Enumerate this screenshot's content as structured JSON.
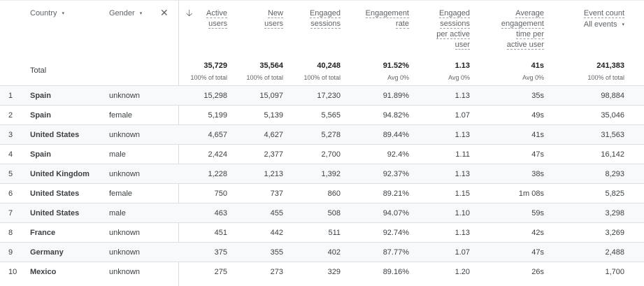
{
  "headers": {
    "dim1": "Country",
    "dim2": "Gender",
    "caret_icon": "▾",
    "close_icon": "✕",
    "sort_icon": "🡣",
    "total_label": "Total",
    "event_select": "All events",
    "metrics": [
      {
        "label": "Active\nusers",
        "total": "35,729",
        "sub": "100% of total"
      },
      {
        "label": "New\nusers",
        "total": "35,564",
        "sub": "100% of total"
      },
      {
        "label": "Engaged\nsessions",
        "total": "40,248",
        "sub": "100% of total"
      },
      {
        "label": "Engagement\nrate",
        "total": "91.52%",
        "sub": "Avg 0%"
      },
      {
        "label": "Engaged\nsessions\nper active\nuser",
        "total": "1.13",
        "sub": "Avg 0%"
      },
      {
        "label": "Average\nengagement\ntime per\nactive user",
        "total": "41s",
        "sub": "Avg 0%"
      },
      {
        "label": "Event count",
        "total": "241,383",
        "sub": "100% of total"
      }
    ]
  },
  "rows": [
    {
      "idx": "1",
      "country": "Spain",
      "gender": "unknown",
      "m": [
        "15,298",
        "15,097",
        "17,230",
        "91.89%",
        "1.13",
        "35s",
        "98,884"
      ]
    },
    {
      "idx": "2",
      "country": "Spain",
      "gender": "female",
      "m": [
        "5,199",
        "5,139",
        "5,565",
        "94.82%",
        "1.07",
        "49s",
        "35,046"
      ]
    },
    {
      "idx": "3",
      "country": "United States",
      "gender": "unknown",
      "m": [
        "4,657",
        "4,627",
        "5,278",
        "89.44%",
        "1.13",
        "41s",
        "31,563"
      ]
    },
    {
      "idx": "4",
      "country": "Spain",
      "gender": "male",
      "m": [
        "2,424",
        "2,377",
        "2,700",
        "92.4%",
        "1.11",
        "47s",
        "16,142"
      ]
    },
    {
      "idx": "5",
      "country": "United Kingdom",
      "gender": "unknown",
      "m": [
        "1,228",
        "1,213",
        "1,392",
        "92.37%",
        "1.13",
        "38s",
        "8,293"
      ]
    },
    {
      "idx": "6",
      "country": "United States",
      "gender": "female",
      "m": [
        "750",
        "737",
        "860",
        "89.21%",
        "1.15",
        "1m 08s",
        "5,825"
      ]
    },
    {
      "idx": "7",
      "country": "United States",
      "gender": "male",
      "m": [
        "463",
        "455",
        "508",
        "94.07%",
        "1.10",
        "59s",
        "3,298"
      ]
    },
    {
      "idx": "8",
      "country": "France",
      "gender": "unknown",
      "m": [
        "451",
        "442",
        "511",
        "92.74%",
        "1.13",
        "42s",
        "3,269"
      ]
    },
    {
      "idx": "9",
      "country": "Germany",
      "gender": "unknown",
      "m": [
        "375",
        "355",
        "402",
        "87.77%",
        "1.07",
        "47s",
        "2,488"
      ]
    },
    {
      "idx": "10",
      "country": "Mexico",
      "gender": "unknown",
      "m": [
        "275",
        "273",
        "329",
        "89.16%",
        "1.20",
        "26s",
        "1,700"
      ]
    }
  ]
}
